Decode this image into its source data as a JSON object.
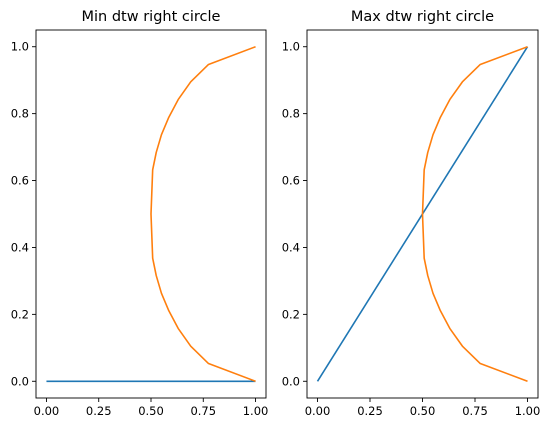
{
  "chart_data": [
    {
      "type": "line",
      "title": "Min dtw right circle",
      "xlabel": "",
      "ylabel": "",
      "xlim": [
        -0.05,
        1.05
      ],
      "ylim": [
        -0.05,
        1.05
      ],
      "xticks": [
        "0.00",
        "0.25",
        "0.50",
        "0.75",
        "1.00"
      ],
      "yticks": [
        "0.0",
        "0.2",
        "0.4",
        "0.6",
        "0.8",
        "1.0"
      ],
      "grid": false,
      "series": [
        {
          "color": "#1f77b4",
          "x": [
            0.0,
            1.0
          ],
          "y": [
            0.0,
            0.0
          ]
        },
        {
          "color": "#ff7f0e",
          "x": [
            1.0,
            0.775,
            0.69,
            0.63,
            0.585,
            0.55,
            0.525,
            0.508,
            0.5,
            0.508,
            0.525,
            0.55,
            0.585,
            0.63,
            0.69,
            0.775,
            1.0
          ],
          "y": [
            1.0,
            0.947,
            0.895,
            0.842,
            0.789,
            0.737,
            0.684,
            0.632,
            0.5,
            0.368,
            0.316,
            0.263,
            0.211,
            0.158,
            0.105,
            0.053,
            0.0
          ]
        }
      ]
    },
    {
      "type": "line",
      "title": "Max dtw right circle",
      "xlabel": "",
      "ylabel": "",
      "xlim": [
        -0.05,
        1.05
      ],
      "ylim": [
        -0.05,
        1.05
      ],
      "xticks": [
        "0.00",
        "0.25",
        "0.50",
        "0.75",
        "1.00"
      ],
      "yticks": [
        "0.0",
        "0.2",
        "0.4",
        "0.6",
        "0.8",
        "1.0"
      ],
      "grid": false,
      "series": [
        {
          "color": "#1f77b4",
          "x": [
            0.0,
            1.0
          ],
          "y": [
            0.0,
            1.0
          ]
        },
        {
          "color": "#ff7f0e",
          "x": [
            1.0,
            0.775,
            0.69,
            0.63,
            0.585,
            0.55,
            0.525,
            0.508,
            0.5,
            0.508,
            0.525,
            0.55,
            0.585,
            0.63,
            0.69,
            0.775,
            1.0
          ],
          "y": [
            1.0,
            0.947,
            0.895,
            0.842,
            0.789,
            0.737,
            0.684,
            0.632,
            0.5,
            0.368,
            0.316,
            0.263,
            0.211,
            0.158,
            0.105,
            0.053,
            0.0
          ]
        }
      ]
    }
  ]
}
